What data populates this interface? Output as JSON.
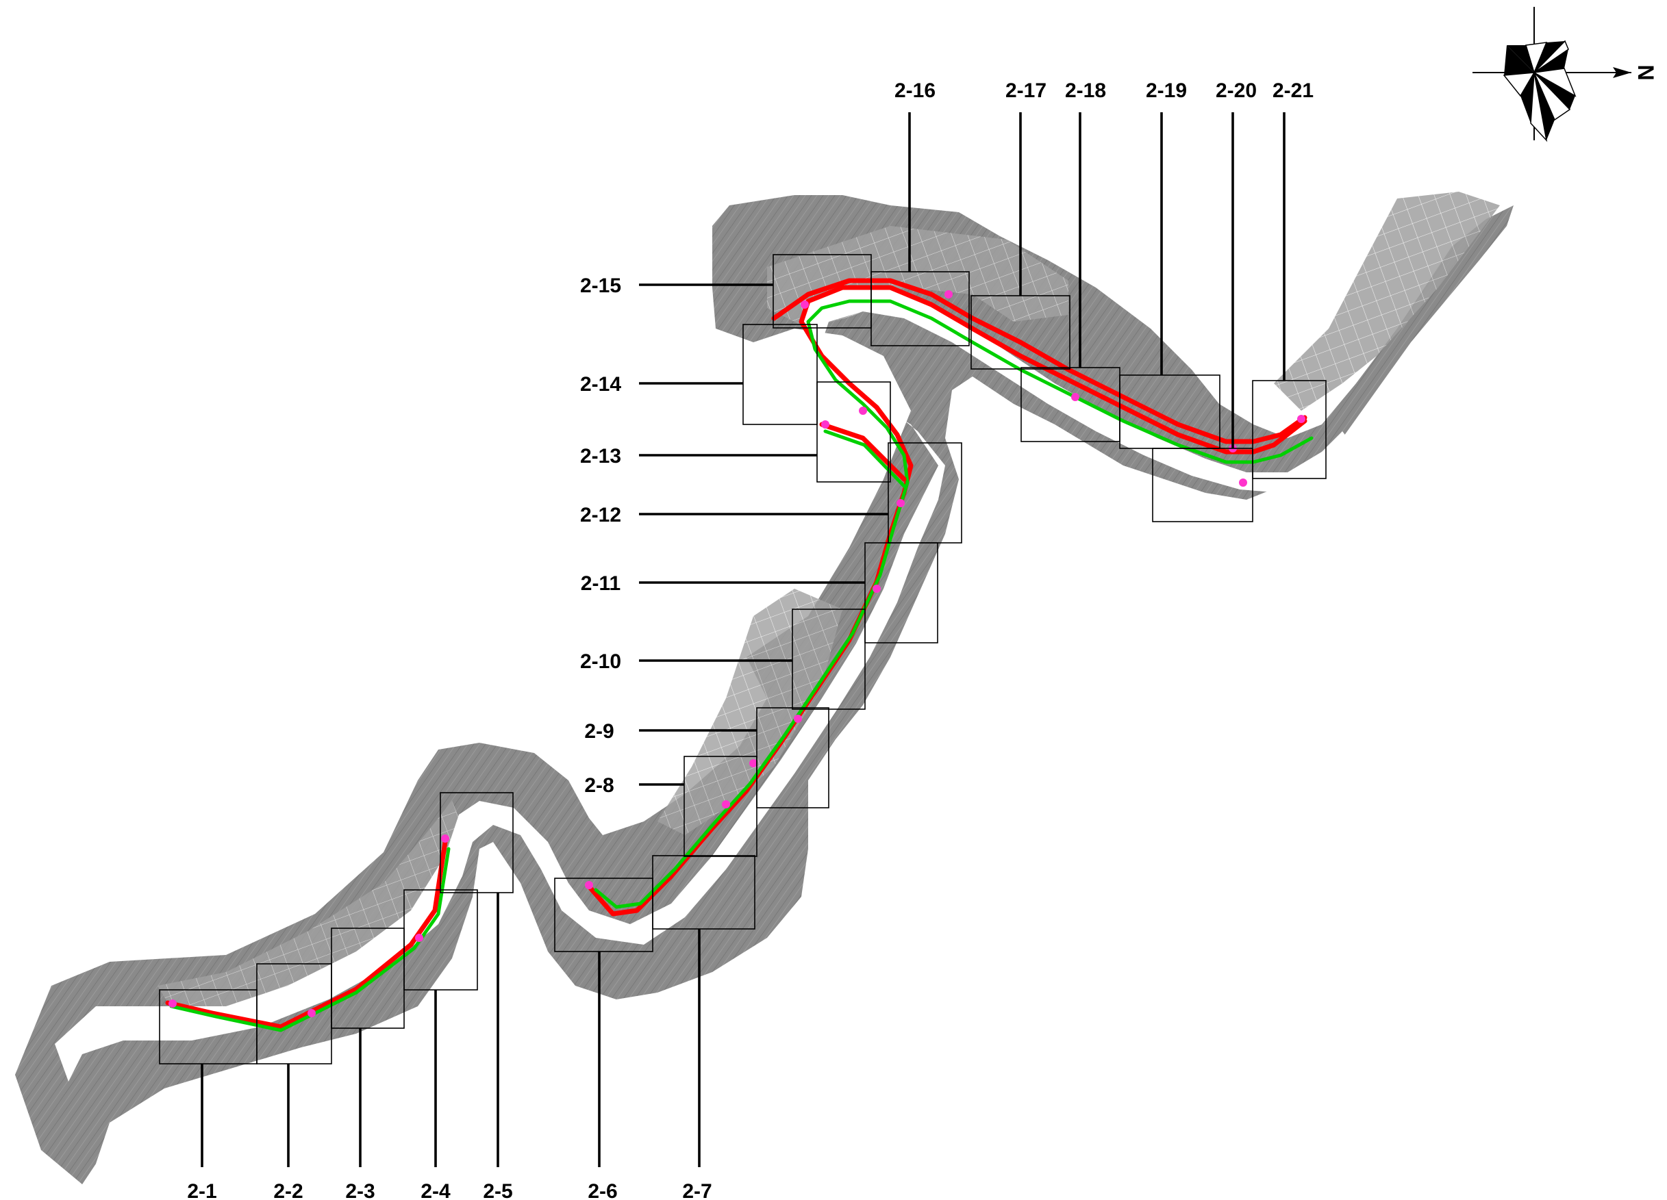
{
  "north_arrow": {
    "label": "N",
    "icon": "north-arrow-icon",
    "wind_rose_icon": "wind-rose-icon"
  },
  "sheets": [
    {
      "id": "2-1",
      "label": "2-1"
    },
    {
      "id": "2-2",
      "label": "2-2"
    },
    {
      "id": "2-3",
      "label": "2-3"
    },
    {
      "id": "2-4",
      "label": "2-4"
    },
    {
      "id": "2-5",
      "label": "2-5"
    },
    {
      "id": "2-6",
      "label": "2-6"
    },
    {
      "id": "2-7",
      "label": "2-7"
    },
    {
      "id": "2-8",
      "label": "2-8"
    },
    {
      "id": "2-9",
      "label": "2-9"
    },
    {
      "id": "2-10",
      "label": "2-10"
    },
    {
      "id": "2-11",
      "label": "2-11"
    },
    {
      "id": "2-12",
      "label": "2-12"
    },
    {
      "id": "2-13",
      "label": "2-13"
    },
    {
      "id": "2-14",
      "label": "2-14"
    },
    {
      "id": "2-15",
      "label": "2-15"
    },
    {
      "id": "2-16",
      "label": "2-16"
    },
    {
      "id": "2-17",
      "label": "2-17"
    },
    {
      "id": "2-18",
      "label": "2-18"
    },
    {
      "id": "2-19",
      "label": "2-19"
    },
    {
      "id": "2-20",
      "label": "2-20"
    },
    {
      "id": "2-21",
      "label": "2-21"
    }
  ],
  "colors": {
    "terrain": "#8a8a8a",
    "river": "#ffffff",
    "route_outer": "#ff0000",
    "route_inner": "#00d000",
    "markers": "#ff33cc",
    "frames": "#000000"
  }
}
